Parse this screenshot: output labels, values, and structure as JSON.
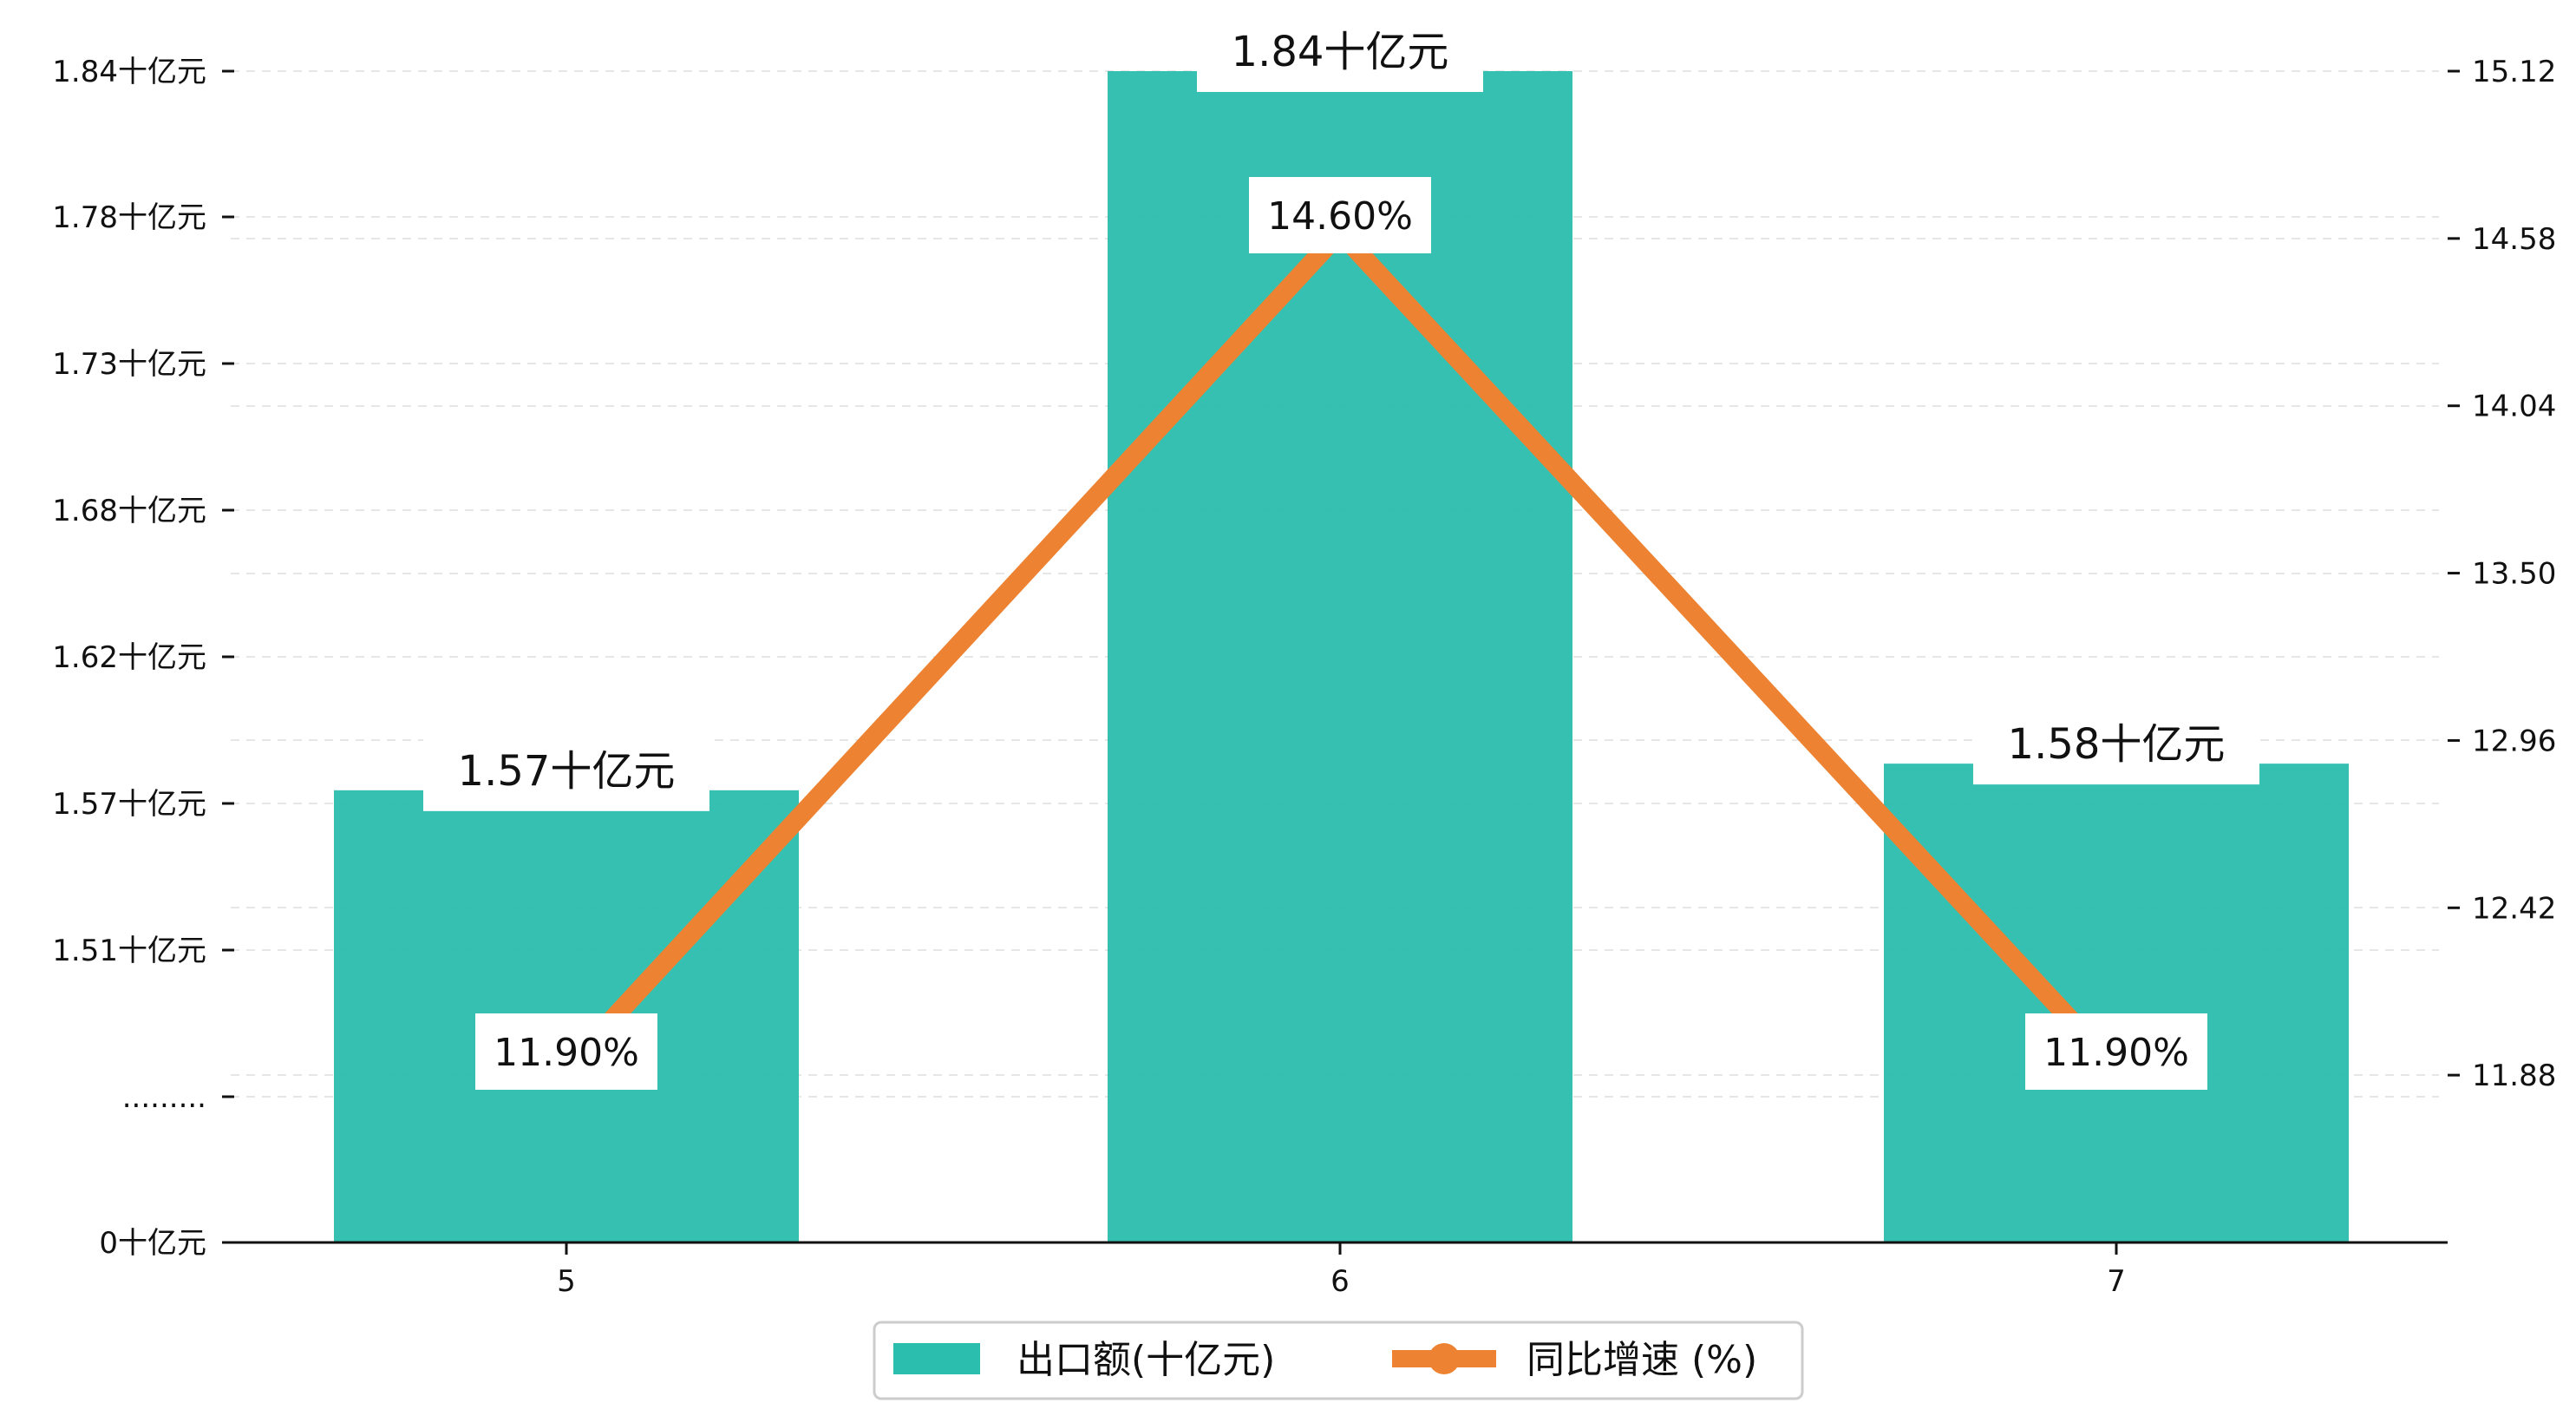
{
  "chart_data": {
    "type": "bar",
    "categories": [
      "5",
      "6",
      "7"
    ],
    "series": [
      {
        "name": "出口额(十亿元)",
        "type": "bar",
        "axis": "left",
        "values": [
          1.57,
          1.84,
          1.58
        ],
        "labels": [
          "1.57十亿元",
          "1.84十亿元",
          "1.58十亿元"
        ],
        "color": "#2bbdad"
      },
      {
        "name": "同比增速 (%)",
        "type": "line",
        "axis": "right",
        "values": [
          11.9,
          14.6,
          11.9
        ],
        "labels": [
          "11.90%",
          "14.60%",
          "11.90%"
        ],
        "color": "#ed8332"
      }
    ],
    "y_left": {
      "break_display": true,
      "ticks": [
        {
          "value": 0,
          "label": "0十亿元"
        },
        {
          "value": null,
          "label": "........."
        },
        {
          "value": 1.51,
          "label": "1.51十亿元"
        },
        {
          "value": 1.57,
          "label": "1.57十亿元"
        },
        {
          "value": 1.62,
          "label": "1.62十亿元"
        },
        {
          "value": 1.68,
          "label": "1.68十亿元"
        },
        {
          "value": 1.73,
          "label": "1.73十亿元"
        },
        {
          "value": 1.78,
          "label": "1.78十亿元"
        },
        {
          "value": 1.84,
          "label": "1.84十亿元"
        }
      ]
    },
    "y_right": {
      "ylim": [
        11.34,
        15.12
      ],
      "ticks": [
        {
          "value": 11.88,
          "label": "11.88"
        },
        {
          "value": 12.42,
          "label": "12.42"
        },
        {
          "value": 12.96,
          "label": "12.96"
        },
        {
          "value": 13.5,
          "label": "13.50"
        },
        {
          "value": 14.04,
          "label": "14.04"
        },
        {
          "value": 14.58,
          "label": "14.58"
        },
        {
          "value": 15.12,
          "label": "15.12"
        }
      ]
    },
    "title": "",
    "xlabel": "",
    "grid": "horizontal dashed",
    "legend_position": "bottom-center"
  }
}
